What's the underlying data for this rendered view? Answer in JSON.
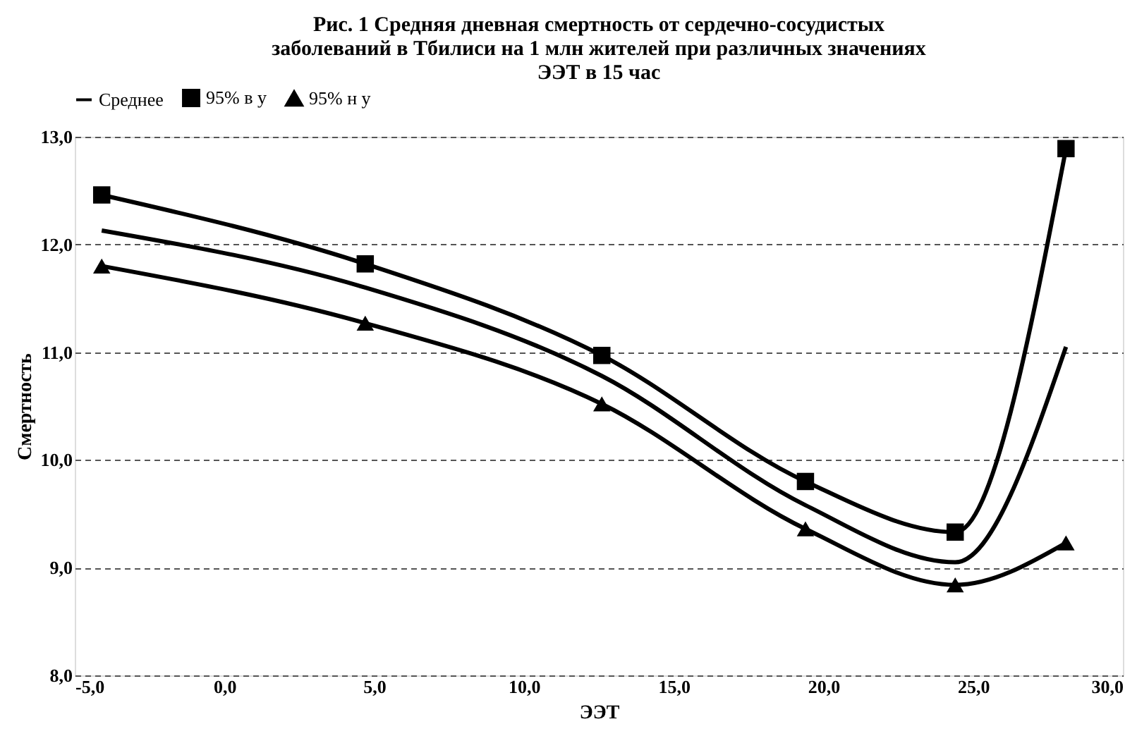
{
  "chart_data": {
    "type": "line",
    "title": "Рис. 1  Средняя дневная смертность от сердечно-сосудистых\nзаболеваний в Тбилиси на 1 млн жителей при различных значениях\nЭЭТ в 15 час",
    "xlabel": "ЭЭТ",
    "ylabel": "Смертность",
    "x": [
      -4.1,
      4.7,
      12.6,
      19.4,
      24.4,
      28.1
    ],
    "series": [
      {
        "name": "Среднее",
        "color": "#000000",
        "marker": "none",
        "values": [
          12.13,
          11.6,
          10.78,
          9.58,
          9.05,
          11.05
        ]
      },
      {
        "name": "95% в у",
        "color": "#000000",
        "marker": "square",
        "values": [
          12.46,
          11.82,
          10.97,
          9.8,
          9.33,
          12.89
        ]
      },
      {
        "name": "95% н у",
        "color": "#000000",
        "marker": "triangle",
        "values": [
          11.8,
          11.27,
          10.52,
          9.36,
          8.84,
          9.23
        ]
      }
    ],
    "xlim": [
      -5,
      30
    ],
    "ylim": [
      8,
      13
    ],
    "xticks": [
      {
        "value": -5,
        "label": "-5,0"
      },
      {
        "value": 0,
        "label": "0,0"
      },
      {
        "value": 5,
        "label": "5,0"
      },
      {
        "value": 10,
        "label": "10,0"
      },
      {
        "value": 15,
        "label": "15,0"
      },
      {
        "value": 20,
        "label": "20,0"
      },
      {
        "value": 25,
        "label": "25,0"
      },
      {
        "value": 30,
        "label": "30,0"
      }
    ],
    "yticks": [
      {
        "value": 8,
        "label": "8,0"
      },
      {
        "value": 9,
        "label": "9,0"
      },
      {
        "value": 10,
        "label": "10,0"
      },
      {
        "value": 11,
        "label": "11,0"
      },
      {
        "value": 12,
        "label": "12,0"
      },
      {
        "value": 13,
        "label": "13,0"
      }
    ],
    "grid": "y",
    "legend": "top",
    "line_style": "solid"
  }
}
